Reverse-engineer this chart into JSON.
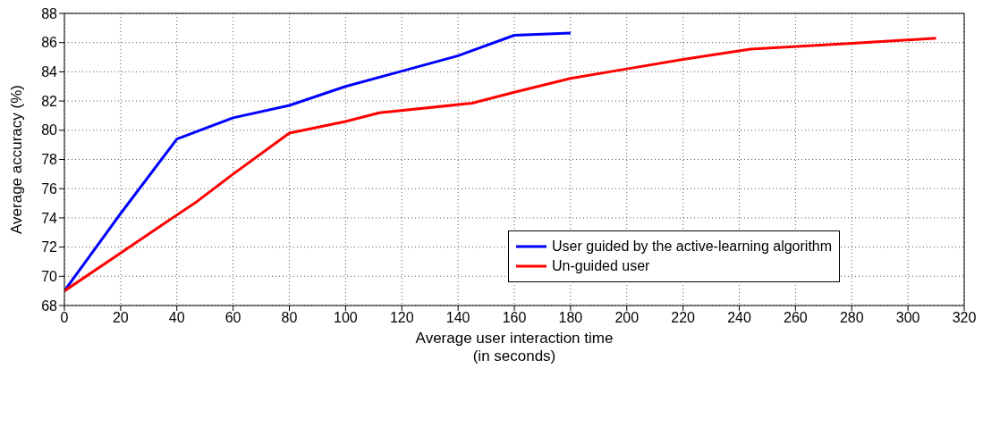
{
  "chart_data": {
    "type": "line",
    "xlabel": "Average user interaction time\n(in seconds)",
    "ylabel": "Average accuracy (%)",
    "xlim": [
      0,
      320
    ],
    "xticks": [
      0,
      20,
      40,
      60,
      80,
      100,
      120,
      140,
      160,
      180,
      200,
      220,
      240,
      260,
      280,
      300,
      320
    ],
    "ylim": [
      68,
      88
    ],
    "yticks": [
      68,
      70,
      72,
      74,
      76,
      78,
      80,
      82,
      84,
      86,
      88
    ],
    "grid": true,
    "legend": "right",
    "marker": "none",
    "line_style": "solid",
    "series": [
      {
        "name": "User guided by the active-learning algorithm",
        "color": "#0000ff",
        "x": [
          0,
          20,
          40,
          60,
          80,
          100,
          120,
          140,
          160,
          180
        ],
        "values": [
          69,
          74.3,
          79.4,
          80.85,
          81.7,
          83,
          84.05,
          85.1,
          86.5,
          86.65
        ]
      },
      {
        "name": "Un-guided user",
        "color": "#ff0000",
        "x": [
          0,
          20,
          40,
          47,
          60,
          80,
          100,
          112,
          145,
          160,
          180,
          200,
          220,
          244,
          280,
          310
        ],
        "values": [
          69,
          71.6,
          74.2,
          75.1,
          77,
          79.8,
          80.6,
          81.2,
          81.85,
          82.6,
          83.55,
          84.2,
          84.85,
          85.55,
          85.95,
          86.3
        ]
      }
    ]
  }
}
